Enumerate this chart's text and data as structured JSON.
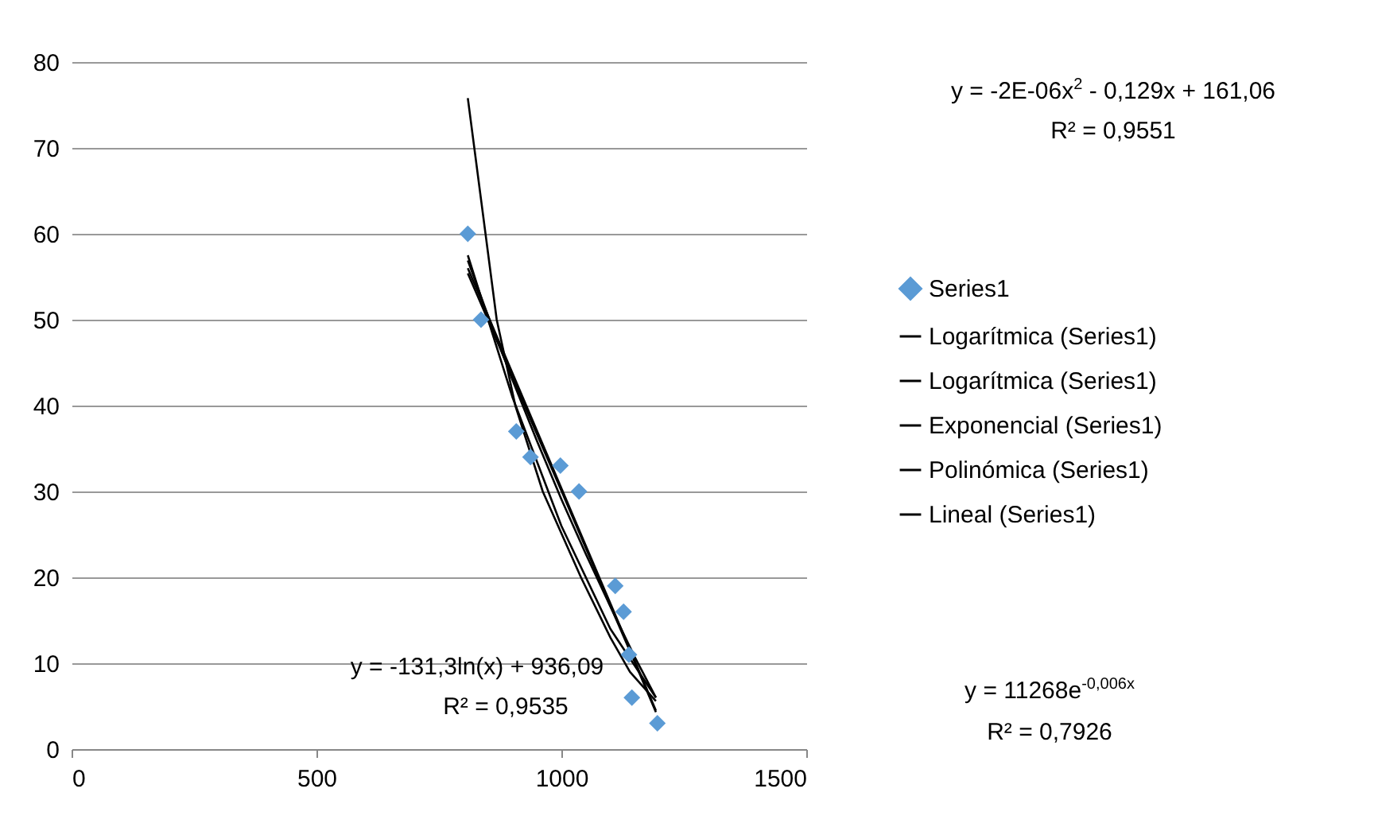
{
  "chart_data": {
    "type": "scatter",
    "xlim": [
      0,
      1500
    ],
    "xticks": [
      0,
      500,
      1000,
      1500
    ],
    "ylim": [
      0,
      80
    ],
    "yticks": [
      0,
      10,
      20,
      30,
      40,
      50,
      60,
      70,
      80
    ],
    "grid": "y",
    "legend": "right",
    "series": [
      {
        "name": "Series1",
        "marker": "diamond",
        "color": "#5b9bd5",
        "x": [
          809,
          836,
          908,
          937,
          998,
          1036,
          1110,
          1127,
          1138,
          1144,
          1196
        ],
        "values": [
          60,
          50,
          37,
          34,
          33,
          30,
          19,
          16,
          11,
          6,
          3
        ]
      },
      {
        "name": "Logarítmica (Series1)",
        "type": "line",
        "marker": "none",
        "color": "#000000",
        "x": [
          809,
          850,
          900,
          950,
          1000,
          1050,
          1100,
          1150,
          1193
        ],
        "values": [
          56.9,
          50.5,
          43.0,
          35.9,
          29.1,
          22.7,
          16.6,
          10.7,
          6.0
        ]
      },
      {
        "name": "Logarítmica (Series1)",
        "type": "line",
        "marker": "none",
        "color": "#000000",
        "x": [
          809,
          900,
          1000,
          1100,
          1193
        ],
        "values": [
          57.5,
          41,
          26,
          14,
          6
        ]
      },
      {
        "name": "Exponencial (Series1)",
        "type": "line",
        "marker": "none",
        "color": "#000000",
        "x": [
          809,
          868,
          906,
          962,
          1040,
          1100,
          1140,
          1193
        ],
        "values": [
          75.8,
          50,
          40,
          30,
          20,
          13,
          9,
          5.6
        ]
      },
      {
        "name": "Polinómica (Series1)",
        "type": "line",
        "marker": "none",
        "color": "#000000",
        "x": [
          809,
          850,
          900,
          950,
          1000,
          1050,
          1100,
          1150,
          1193
        ],
        "values": [
          55.4,
          50.0,
          43.3,
          36.7,
          30.1,
          23.4,
          16.7,
          10.1,
          4.3
        ]
      },
      {
        "name": "Lineal (Series1)",
        "type": "line",
        "marker": "none",
        "color": "#000000",
        "x": [
          809,
          1193
        ],
        "values": [
          56,
          4.5
        ]
      }
    ],
    "annotations": [
      "y = -2E-06x$^{2}$ - 0,129x + 161,06",
      "R² = 0,9551",
      "y = -131,3ln(x) + 936,09",
      "R² = 0,9535",
      "y = 11268e$^{-0,006x}$",
      "R² = 0,7926"
    ]
  }
}
